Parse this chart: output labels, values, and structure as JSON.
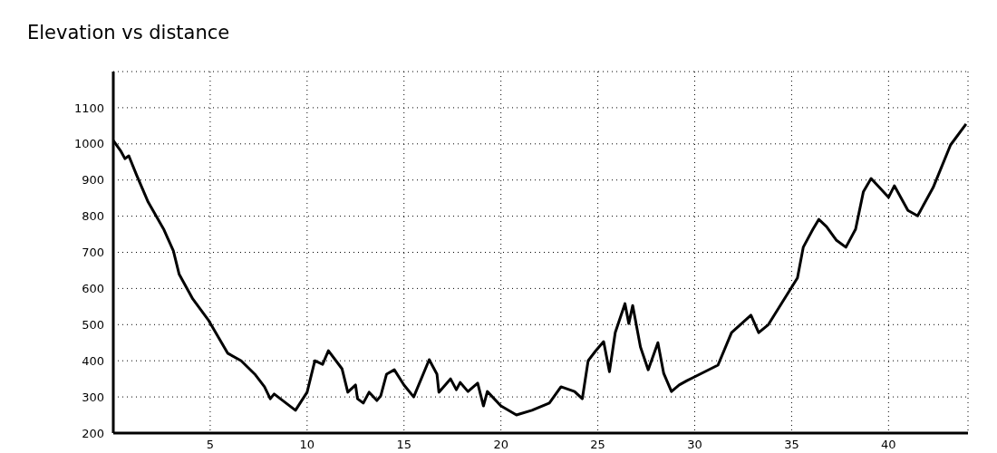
{
  "chart_data": {
    "type": "line",
    "title": "Elevation vs distance",
    "x": [
      0,
      0.4,
      0.6,
      0.8,
      1.2,
      1.8,
      2.6,
      3.1,
      3.4,
      4.1,
      4.9,
      5.9,
      6.6,
      7.3,
      7.8,
      8.1,
      8.3,
      9.4,
      10.0,
      10.4,
      10.8,
      11.1,
      11.8,
      12.1,
      12.5,
      12.6,
      12.9,
      13.2,
      13.6,
      13.8,
      14.1,
      14.5,
      15.0,
      15.5,
      16.3,
      16.7,
      16.8,
      17.4,
      17.7,
      17.9,
      18.3,
      18.8,
      19.1,
      19.3,
      20.0,
      20.8,
      21.6,
      22.5,
      23.1,
      23.8,
      24.2,
      24.5,
      24.9,
      25.3,
      25.6,
      25.9,
      26.4,
      26.6,
      26.8,
      27.2,
      27.6,
      28.1,
      28.4,
      28.8,
      29.2,
      29.6,
      31.2,
      31.9,
      32.9,
      33.3,
      33.8,
      35.3,
      35.6,
      36.1,
      36.4,
      36.8,
      37.3,
      37.8,
      38.3,
      38.7,
      39.1,
      40.0,
      40.3,
      41.0,
      41.5,
      42.3,
      43.2,
      44.0
    ],
    "series": [
      {
        "color": "#000000",
        "values": [
          1009,
          979,
          959,
          967,
          914,
          839,
          764,
          704,
          639,
          571,
          513,
          421,
          400,
          363,
          328,
          295,
          308,
          263,
          313,
          400,
          390,
          428,
          378,
          313,
          333,
          295,
          283,
          313,
          290,
          303,
          363,
          375,
          333,
          300,
          403,
          363,
          313,
          350,
          320,
          340,
          315,
          338,
          275,
          315,
          275,
          250,
          263,
          283,
          328,
          315,
          295,
          400,
          428,
          453,
          370,
          478,
          558,
          503,
          553,
          438,
          375,
          450,
          365,
          315,
          333,
          345,
          388,
          478,
          526,
          478,
          500,
          629,
          714,
          764,
          791,
          771,
          734,
          714,
          764,
          867,
          904,
          852,
          884,
          816,
          801,
          879,
          997,
          1055
        ]
      }
    ],
    "xlim": [
      0,
      44.1
    ],
    "xticks": [
      5,
      10,
      15,
      20,
      25,
      30,
      35,
      40
    ],
    "ylim": [
      200,
      1200
    ],
    "yticks": [
      200,
      300,
      400,
      500,
      600,
      700,
      800,
      900,
      1000,
      1100
    ],
    "grid": true,
    "legend": false,
    "marker": "none",
    "line_style": "solid"
  }
}
